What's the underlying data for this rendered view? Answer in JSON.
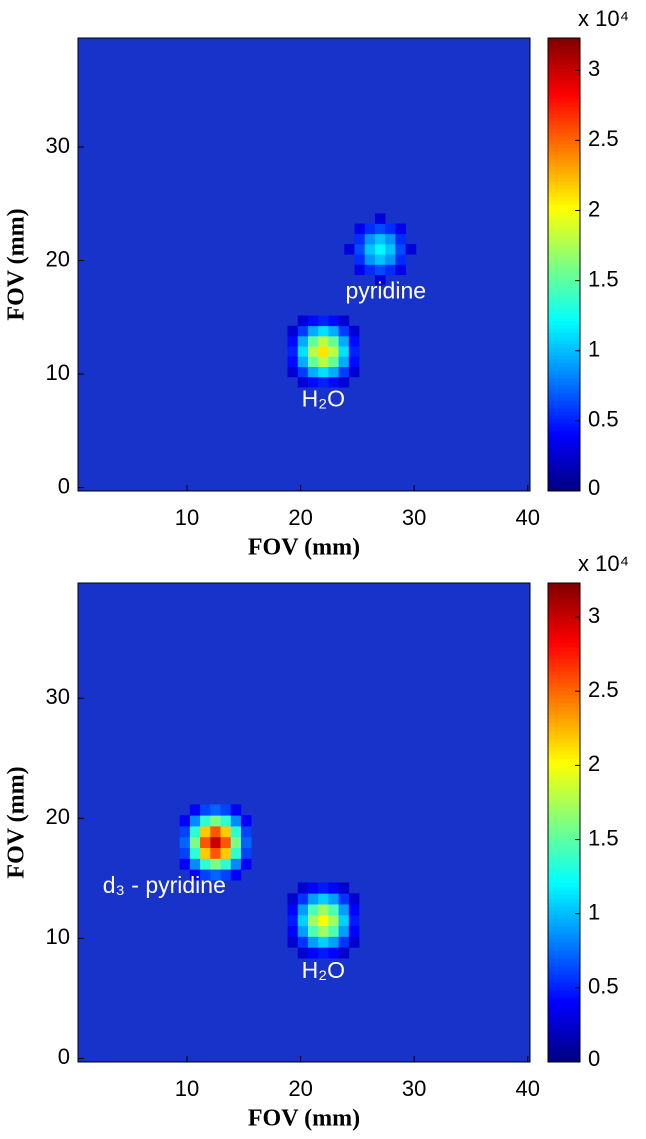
{
  "chart_data": [
    {
      "type": "heatmap",
      "xlabel": "FOV (mm)",
      "ylabel": "FOV (mm)",
      "xlim": [
        0.4,
        40.2
      ],
      "ylim": [
        -0.3,
        39.6
      ],
      "xticks": [
        10,
        20,
        30,
        40
      ],
      "yticks": [
        0,
        10,
        20,
        30
      ],
      "colormap": "jet",
      "clim": [
        0,
        32300
      ],
      "cticks": [
        0,
        {
          "value": 5000,
          "label": "0.5"
        },
        {
          "value": 10000,
          "label": "1"
        },
        {
          "value": 15000,
          "label": "1.5"
        },
        {
          "value": 20000,
          "label": "2"
        },
        {
          "value": 25000,
          "label": "2.5"
        },
        {
          "value": 30000,
          "label": "3"
        }
      ],
      "colorbar_label": "x 10⁴",
      "spots": [
        {
          "label": "pyridine",
          "x": 27,
          "y": 21,
          "peak": 12000
        },
        {
          "label": "H₂O",
          "x": 22,
          "y": 12,
          "peak": 21000
        }
      ]
    },
    {
      "type": "heatmap",
      "xlabel": "FOV (mm)",
      "ylabel": "FOV (mm)",
      "xlim": [
        0.4,
        40.2
      ],
      "ylim": [
        -0.3,
        39.6
      ],
      "xticks": [
        10,
        20,
        30,
        40
      ],
      "yticks": [
        0,
        10,
        20,
        30
      ],
      "colormap": "jet",
      "clim": [
        0,
        32300
      ],
      "cticks": [
        0,
        {
          "value": 5000,
          "label": "0.5"
        },
        {
          "value": 10000,
          "label": "1"
        },
        {
          "value": 15000,
          "label": "1.5"
        },
        {
          "value": 20000,
          "label": "2"
        },
        {
          "value": 25000,
          "label": "2.5"
        },
        {
          "value": 30000,
          "label": "3"
        }
      ],
      "colorbar_label": "x 10⁴",
      "spots": [
        {
          "label": "d₃ - pyridine",
          "x": 12.5,
          "y": 18,
          "peak": 30000
        },
        {
          "label": "H₂O",
          "x": 22,
          "y": 11.5,
          "peak": 20000
        }
      ]
    }
  ]
}
